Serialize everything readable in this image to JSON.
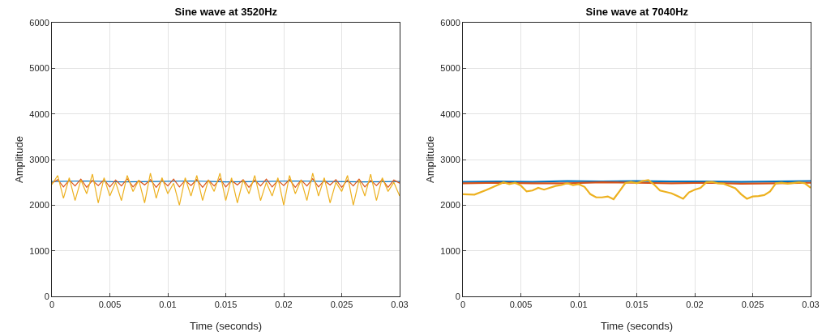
{
  "chart_data": [
    {
      "type": "line",
      "title": "Sine wave at 3520Hz",
      "xlabel": "Time (seconds)",
      "ylabel": "Amplitude",
      "xlim": [
        0,
        0.03
      ],
      "xticks": [
        0,
        0.005,
        0.01,
        0.015,
        0.02,
        0.025,
        0.03
      ],
      "ylim": [
        0,
        6000
      ],
      "yticks": [
        0,
        1000,
        2000,
        3000,
        4000,
        5000,
        6000
      ],
      "grid": true,
      "line_style": "solid",
      "series": [
        {
          "color": "#0072bd",
          "x": [
            0,
            0.003,
            0.006,
            0.009,
            0.012,
            0.015,
            0.018,
            0.021,
            0.024,
            0.027,
            0.03
          ],
          "values": [
            2520,
            2530,
            2510,
            2520,
            2530,
            2510,
            2520,
            2530,
            2520,
            2510,
            2520
          ]
        },
        {
          "color": "#d95319",
          "x": [
            0,
            0.0005,
            0.001,
            0.0015,
            0.002,
            0.0025,
            0.003,
            0.0035,
            0.004,
            0.0045,
            0.005,
            0.0055,
            0.006,
            0.0065,
            0.007,
            0.0075,
            0.008,
            0.0085,
            0.009,
            0.0095,
            0.01,
            0.0105,
            0.011,
            0.0115,
            0.012,
            0.0125,
            0.013,
            0.0135,
            0.014,
            0.0145,
            0.015,
            0.0155,
            0.016,
            0.0165,
            0.017,
            0.0175,
            0.018,
            0.0185,
            0.019,
            0.0195,
            0.02,
            0.0205,
            0.021,
            0.0215,
            0.022,
            0.0225,
            0.023,
            0.0235,
            0.024,
            0.0245,
            0.025,
            0.0255,
            0.026,
            0.0265,
            0.027,
            0.0275,
            0.028,
            0.0285,
            0.029,
            0.0295,
            0.03
          ],
          "values": [
            2480,
            2560,
            2400,
            2550,
            2420,
            2570,
            2390,
            2540,
            2430,
            2560,
            2400,
            2550,
            2420,
            2580,
            2400,
            2540,
            2440,
            2560,
            2390,
            2550,
            2420,
            2570,
            2400,
            2540,
            2430,
            2560,
            2390,
            2550,
            2420,
            2580,
            2400,
            2540,
            2440,
            2560,
            2390,
            2550,
            2420,
            2570,
            2400,
            2540,
            2430,
            2560,
            2390,
            2550,
            2420,
            2580,
            2400,
            2540,
            2440,
            2560,
            2390,
            2550,
            2420,
            2570,
            2400,
            2540,
            2430,
            2560,
            2390,
            2550,
            2480
          ]
        },
        {
          "color": "#edb120",
          "x": [
            0,
            0.0005,
            0.001,
            0.0015,
            0.002,
            0.0025,
            0.003,
            0.0035,
            0.004,
            0.0045,
            0.005,
            0.0055,
            0.006,
            0.0065,
            0.007,
            0.0075,
            0.008,
            0.0085,
            0.009,
            0.0095,
            0.01,
            0.0105,
            0.011,
            0.0115,
            0.012,
            0.0125,
            0.013,
            0.0135,
            0.014,
            0.0145,
            0.015,
            0.0155,
            0.016,
            0.0165,
            0.017,
            0.0175,
            0.018,
            0.0185,
            0.019,
            0.0195,
            0.02,
            0.0205,
            0.021,
            0.0215,
            0.022,
            0.0225,
            0.023,
            0.0235,
            0.024,
            0.0245,
            0.025,
            0.0255,
            0.026,
            0.0265,
            0.027,
            0.0275,
            0.028,
            0.0285,
            0.029,
            0.0295,
            0.03
          ],
          "values": [
            2450,
            2650,
            2150,
            2600,
            2100,
            2550,
            2250,
            2680,
            2050,
            2600,
            2200,
            2500,
            2100,
            2650,
            2300,
            2550,
            2050,
            2700,
            2150,
            2600,
            2250,
            2480,
            2000,
            2600,
            2200,
            2650,
            2100,
            2550,
            2300,
            2700,
            2100,
            2600,
            2050,
            2550,
            2250,
            2650,
            2100,
            2500,
            2200,
            2600,
            2000,
            2650,
            2250,
            2550,
            2100,
            2700,
            2200,
            2600,
            2050,
            2500,
            2300,
            2650,
            2000,
            2550,
            2200,
            2680,
            2100,
            2600,
            2300,
            2500,
            2200
          ]
        }
      ]
    },
    {
      "type": "line",
      "title": "Sine wave at 7040Hz",
      "xlabel": "Time (seconds)",
      "ylabel": "Amplitude",
      "xlim": [
        0,
        0.03
      ],
      "xticks": [
        0,
        0.005,
        0.01,
        0.015,
        0.02,
        0.025,
        0.03
      ],
      "ylim": [
        0,
        6000
      ],
      "yticks": [
        0,
        1000,
        2000,
        3000,
        4000,
        5000,
        6000
      ],
      "grid": true,
      "line_style": "solid",
      "series": [
        {
          "color": "#0072bd",
          "x": [
            0,
            0.003,
            0.006,
            0.009,
            0.012,
            0.015,
            0.018,
            0.021,
            0.024,
            0.027,
            0.03
          ],
          "values": [
            2510,
            2520,
            2510,
            2530,
            2520,
            2530,
            2520,
            2520,
            2510,
            2520,
            2530
          ]
        },
        {
          "color": "#d95319",
          "x": [
            0,
            0.003,
            0.006,
            0.009,
            0.012,
            0.015,
            0.018,
            0.021,
            0.024,
            0.027,
            0.03
          ],
          "values": [
            2480,
            2490,
            2480,
            2480,
            2500,
            2490,
            2480,
            2490,
            2470,
            2480,
            2490
          ]
        },
        {
          "color": "#edb120",
          "x": [
            0,
            0.001,
            0.002,
            0.003,
            0.0035,
            0.004,
            0.0045,
            0.005,
            0.0055,
            0.006,
            0.0065,
            0.007,
            0.008,
            0.0085,
            0.009,
            0.0095,
            0.01,
            0.0105,
            0.011,
            0.0115,
            0.012,
            0.0125,
            0.013,
            0.0135,
            0.014,
            0.0145,
            0.015,
            0.0155,
            0.016,
            0.0165,
            0.017,
            0.0175,
            0.018,
            0.0185,
            0.019,
            0.0195,
            0.02,
            0.0205,
            0.021,
            0.0215,
            0.022,
            0.0225,
            0.023,
            0.0235,
            0.024,
            0.0245,
            0.025,
            0.0255,
            0.026,
            0.0265,
            0.027,
            0.0275,
            0.028,
            0.029,
            0.0295,
            0.03
          ],
          "values": [
            2240,
            2230,
            2330,
            2440,
            2500,
            2460,
            2490,
            2430,
            2300,
            2320,
            2380,
            2340,
            2420,
            2440,
            2480,
            2440,
            2460,
            2400,
            2240,
            2170,
            2170,
            2190,
            2130,
            2300,
            2480,
            2510,
            2480,
            2530,
            2550,
            2450,
            2320,
            2290,
            2260,
            2200,
            2140,
            2280,
            2340,
            2380,
            2500,
            2510,
            2480,
            2470,
            2420,
            2370,
            2240,
            2140,
            2190,
            2200,
            2220,
            2300,
            2480,
            2490,
            2470,
            2500,
            2480,
            2380
          ]
        }
      ]
    }
  ]
}
